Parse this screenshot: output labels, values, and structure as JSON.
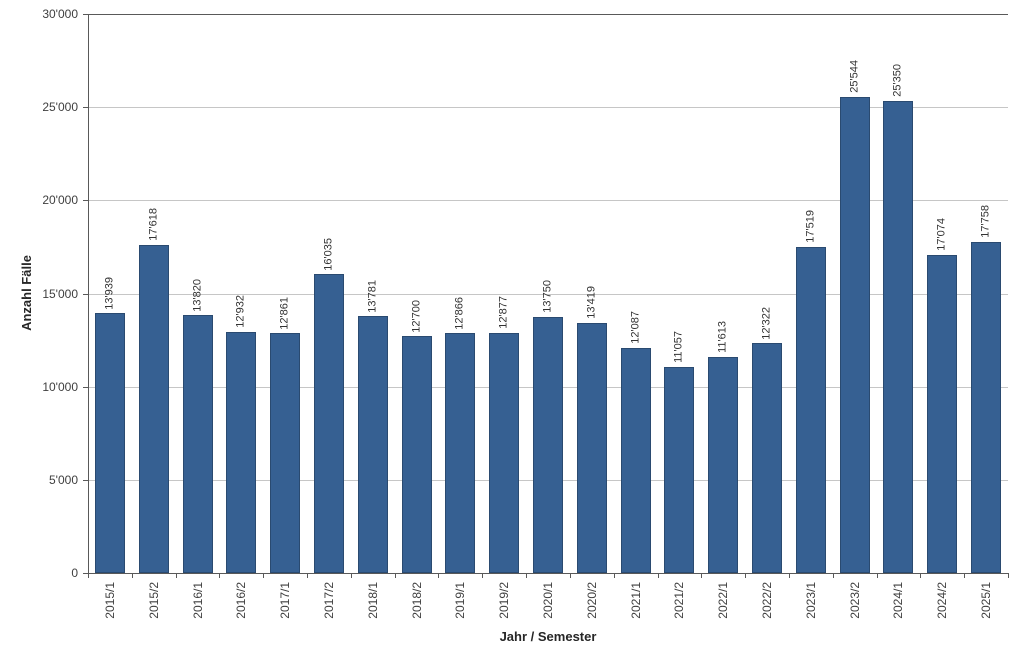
{
  "chart_data": {
    "type": "bar",
    "title": "",
    "xlabel": "Jahr / Semester",
    "ylabel": "Anzahl Fälle",
    "categories": [
      "2015/1",
      "2015/2",
      "2016/1",
      "2016/2",
      "2017/1",
      "2017/2",
      "2018/1",
      "2018/2",
      "2019/1",
      "2019/2",
      "2020/1",
      "2020/2",
      "2021/1",
      "2021/2",
      "2022/1",
      "2022/2",
      "2023/1",
      "2023/2",
      "2024/1",
      "2024/2",
      "2025/1"
    ],
    "values": [
      13939,
      17618,
      13820,
      12932,
      12861,
      16035,
      13781,
      12700,
      12866,
      12877,
      13750,
      13419,
      12087,
      11057,
      11613,
      12322,
      17519,
      25544,
      25350,
      17074,
      17758
    ],
    "value_labels": [
      "13'939",
      "17'618",
      "13'820",
      "12'932",
      "12'861",
      "16'035",
      "13'781",
      "12'700",
      "12'866",
      "12'877",
      "13'750",
      "13'419",
      "12'087",
      "11'057",
      "11'613",
      "12'322",
      "17'519",
      "25'544",
      "25'350",
      "17'074",
      "17'758"
    ],
    "ylim": [
      0,
      30000
    ],
    "ytick_interval": 5000,
    "ytick_labels": [
      "0",
      "5'000",
      "10'000",
      "15'000",
      "20'000",
      "25'000",
      "30'000"
    ],
    "grid": "horizontal-on",
    "legend": "none",
    "bar_color": "#366092",
    "bar_border_color": "#2a4a70",
    "gridline_color": "#c6c6c6",
    "axis_color": "#595959",
    "tick_label_color": "#3f3f3f",
    "value_label_color": "#333333"
  }
}
